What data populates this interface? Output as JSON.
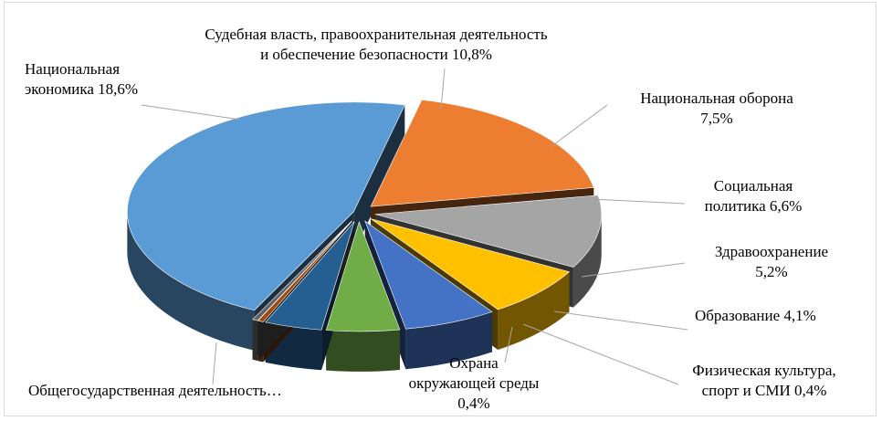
{
  "chart_data": {
    "type": "pie",
    "style": "3d-exploded",
    "legend": "none",
    "slices": [
      {
        "label": "Общегосударственная деятельность…",
        "value": 46.4,
        "value_label": "",
        "color": "#5b9bd5"
      },
      {
        "label": "Национальная экономика",
        "value": 18.6,
        "value_label": "18,6%",
        "color": "#ed7d31"
      },
      {
        "label": "Судебная власть, правоохранительная деятельность и обеспечение безопасности",
        "value": 10.8,
        "value_label": "10,8%",
        "color": "#a5a5a5"
      },
      {
        "label": "Национальная оборона",
        "value": 7.5,
        "value_label": "7,5%",
        "color": "#ffc000"
      },
      {
        "label": "Социальная политика",
        "value": 6.6,
        "value_label": "6,6%",
        "color": "#4472c4"
      },
      {
        "label": "Здравоохранение",
        "value": 5.2,
        "value_label": "5,2%",
        "color": "#70ad47"
      },
      {
        "label": "Образование",
        "value": 4.1,
        "value_label": "4,1%",
        "color": "#255e91"
      },
      {
        "label": "Физическая культура, спорт и СМИ",
        "value": 0.4,
        "value_label": "0,4%",
        "color": "#9e480e"
      },
      {
        "label": "Охрана окружающей среды",
        "value": 0.4,
        "value_label": "0,4%",
        "color": "#636363"
      }
    ],
    "labels": {
      "general": "Общегосударственная деятельность…",
      "economy_1": "Национальная",
      "economy_2": "экономика 18,6%",
      "justice_1": "Судебная власть, правоохранительная деятельность",
      "justice_2": "и обеспечение безопасности 10,8%",
      "defense_1": "Национальная оборона",
      "defense_2": "7,5%",
      "social_1": "Социальная",
      "social_2": "политика 6,6%",
      "health_1": "Здравоохранение",
      "health_2": "5,2%",
      "education_1": "Образование 4,1%",
      "sport_1": "Физическая культура,",
      "sport_2": "спорт и СМИ 0,4%",
      "env_1": "Охрана",
      "env_2": "окружающей среды",
      "env_3": "0,4%"
    }
  }
}
